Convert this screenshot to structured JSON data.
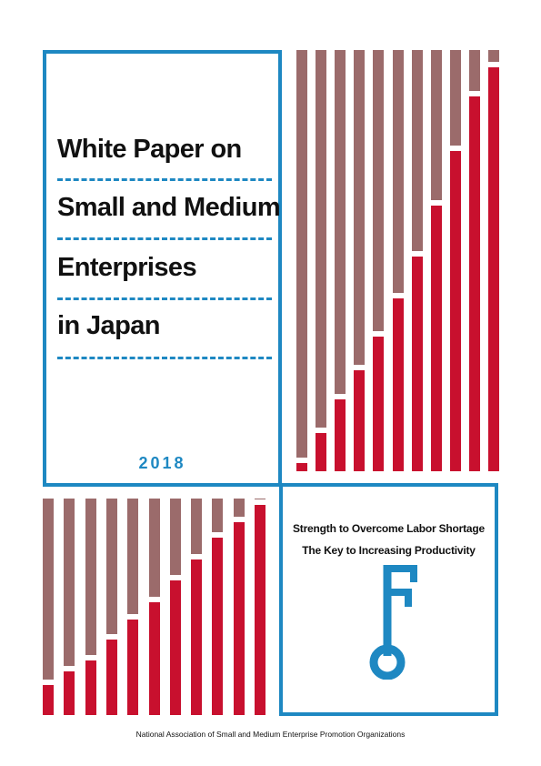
{
  "cover": {
    "title_lines": [
      "White Paper on",
      "Small and Medium",
      "Enterprises",
      "in Japan"
    ],
    "year": "2018",
    "tagline_line1": "Strength to Overcome Labor Shortage",
    "tagline_line2": "The Key to Increasing Productivity",
    "publisher": "National Association of Small and Medium Enterprise Promotion Organizations"
  },
  "colors": {
    "brand_blue": "#1e88c2",
    "bar_red": "#c8102e",
    "bar_taupe": "#9b6b6b"
  },
  "icons": {
    "key": "key-icon"
  },
  "decorative_bars": {
    "top_right_red_fractions": [
      0.02,
      0.09,
      0.17,
      0.24,
      0.32,
      0.41,
      0.51,
      0.63,
      0.76,
      0.89,
      0.96
    ],
    "bottom_left_red_fractions": [
      0.14,
      0.2,
      0.25,
      0.35,
      0.44,
      0.52,
      0.62,
      0.72,
      0.82,
      0.89,
      0.97
    ]
  }
}
